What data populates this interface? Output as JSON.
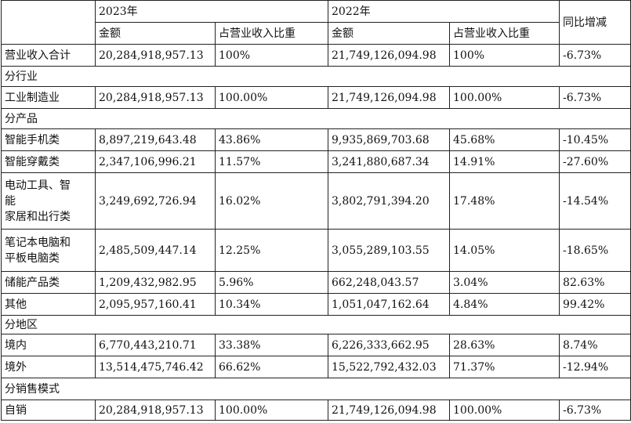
{
  "header": {
    "year_2023": "2023年",
    "year_2022": "2022年",
    "yoy": "同比增减",
    "amount": "金额",
    "share": "占营业收入比重"
  },
  "total": {
    "label": "营业收入合计",
    "amt2023": "20,284,918,957.13",
    "pct2023": "100%",
    "amt2022": "21,749,126,094.98",
    "pct2022": "100%",
    "yoy": "-6.73%"
  },
  "sections": {
    "industry": "分行业",
    "product": "分产品",
    "region": "分地区",
    "sales_mode": "分销售模式"
  },
  "industry_rows": [
    {
      "label": "工业制造业",
      "amt2023": "20,284,918,957.13",
      "pct2023": "100.00%",
      "amt2022": "21,749,126,094.98",
      "pct2022": "100.00%",
      "yoy": "-6.73%"
    }
  ],
  "product_rows": [
    {
      "label": "智能手机类",
      "amt2023": "8,897,219,643.48",
      "pct2023": "43.86%",
      "amt2022": "9,935,869,703.68",
      "pct2022": "45.68%",
      "yoy": "-10.45%"
    },
    {
      "label": "智能穿戴类",
      "amt2023": "2,347,106,996.21",
      "pct2023": "11.57%",
      "amt2022": "3,241,880,687.34",
      "pct2022": "14.91%",
      "yoy": "-27.60%"
    },
    {
      "label_lines": [
        "电动工具、智",
        "能",
        "家居和出行类"
      ],
      "amt2023": "3,249,692,726.94",
      "pct2023": "16.02%",
      "amt2022": "3,802,791,394.20",
      "pct2022": "17.48%",
      "yoy": "-14.54%"
    },
    {
      "label_lines": [
        "笔记本电脑和",
        "平板电脑类"
      ],
      "amt2023": "2,485,509,447.14",
      "pct2023": "12.25%",
      "amt2022": "3,055,289,103.55",
      "pct2022": "14.05%",
      "yoy": "-18.65%"
    },
    {
      "label": "储能产品类",
      "amt2023": "1,209,432,982.95",
      "pct2023": "5.96%",
      "amt2022": "662,248,043.57",
      "pct2022": "3.04%",
      "yoy": "82.63%"
    },
    {
      "label": "其他",
      "amt2023": "2,095,957,160.41",
      "pct2023": "10.34%",
      "amt2022": "1,051,047,162.64",
      "pct2022": "4.84%",
      "yoy": "99.42%"
    }
  ],
  "region_rows": [
    {
      "label": "境内",
      "amt2023": "6,770,443,210.71",
      "pct2023": "33.38%",
      "amt2022": "6,226,333,662.95",
      "pct2022": "28.63%",
      "yoy": "8.74%"
    },
    {
      "label": "境外",
      "amt2023": "13,514,475,746.42",
      "pct2023": "66.62%",
      "amt2022": "15,522,792,432.03",
      "pct2022": "71.37%",
      "yoy": "-12.94%"
    }
  ],
  "sales_rows": [
    {
      "label": "自销",
      "amt2023": "20,284,918,957.13",
      "pct2023": "100.00%",
      "amt2022": "21,749,126,094.98",
      "pct2022": "100.00%",
      "yoy": "-6.73%"
    }
  ]
}
